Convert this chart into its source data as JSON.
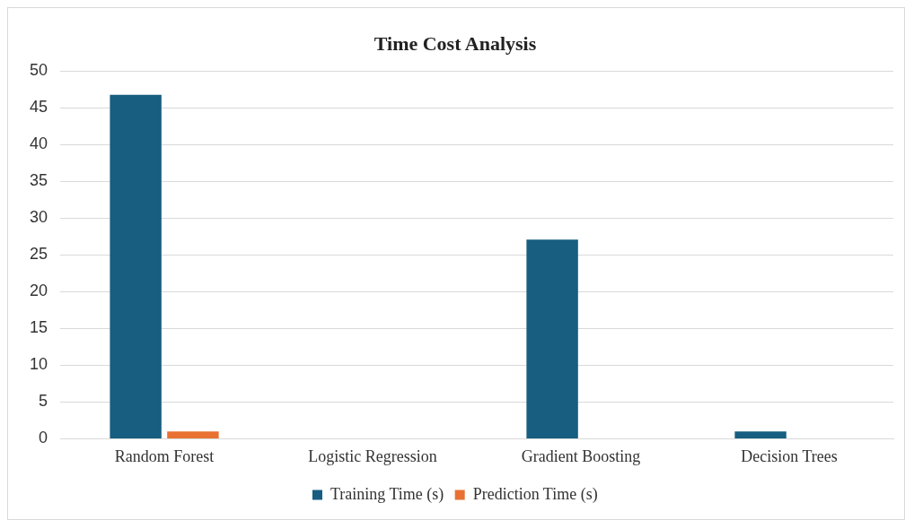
{
  "chart_data": {
    "type": "bar",
    "title": "Time Cost Analysis",
    "categories": [
      "Random Forest",
      "Logistic Regression",
      "Gradient Boosting",
      "Decision Trees"
    ],
    "series": [
      {
        "name": "Training Time (s)",
        "color": "#175e80",
        "values": [
          46.8,
          0,
          27.1,
          1.0
        ]
      },
      {
        "name": "Prediction Time (s)",
        "color": "#e97132",
        "values": [
          1.0,
          0,
          0,
          0
        ]
      }
    ],
    "ylim": [
      0,
      50
    ],
    "yticks": [
      0,
      5,
      10,
      15,
      20,
      25,
      30,
      35,
      40,
      45,
      50
    ],
    "grid": "y",
    "legend": "bottom"
  }
}
